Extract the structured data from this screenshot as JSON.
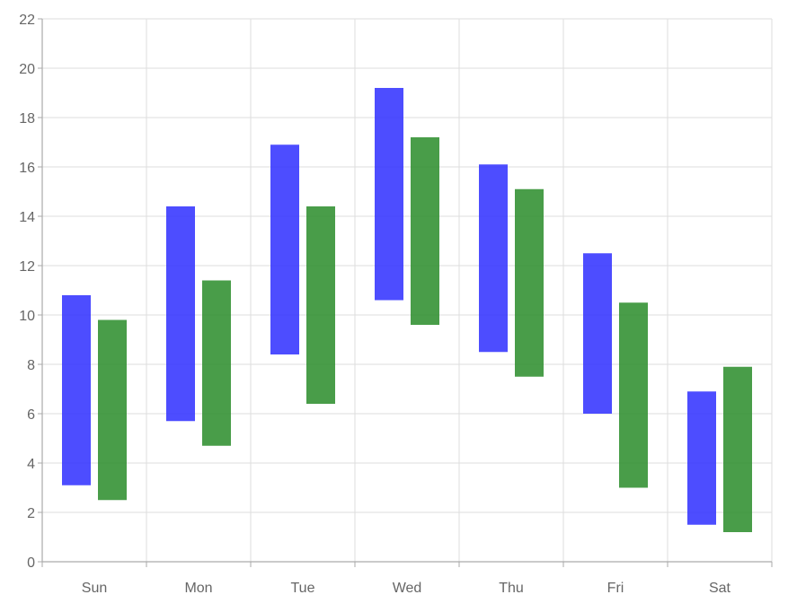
{
  "chart_data": {
    "type": "bar",
    "subtype": "floating-range-column",
    "categories": [
      "Sun",
      "Mon",
      "Tue",
      "Wed",
      "Thu",
      "Fri",
      "Sat"
    ],
    "series": [
      {
        "color": "#3333ff",
        "low": [
          3.1,
          5.7,
          8.4,
          10.6,
          8.5,
          6.0,
          1.5
        ],
        "high": [
          10.8,
          14.4,
          16.9,
          19.2,
          16.1,
          12.5,
          6.9
        ]
      },
      {
        "color": "#2e8f2e",
        "low": [
          2.5,
          4.7,
          6.4,
          9.6,
          7.5,
          3.0,
          1.2
        ],
        "high": [
          9.8,
          11.4,
          14.4,
          17.2,
          15.1,
          10.5,
          7.9
        ]
      }
    ],
    "ylim": [
      0,
      22
    ],
    "yticks": [
      0,
      2,
      4,
      6,
      8,
      10,
      12,
      14,
      16,
      18,
      20,
      22
    ],
    "title": "",
    "xlabel": "",
    "ylabel": "",
    "grid": true,
    "legend": "none"
  }
}
